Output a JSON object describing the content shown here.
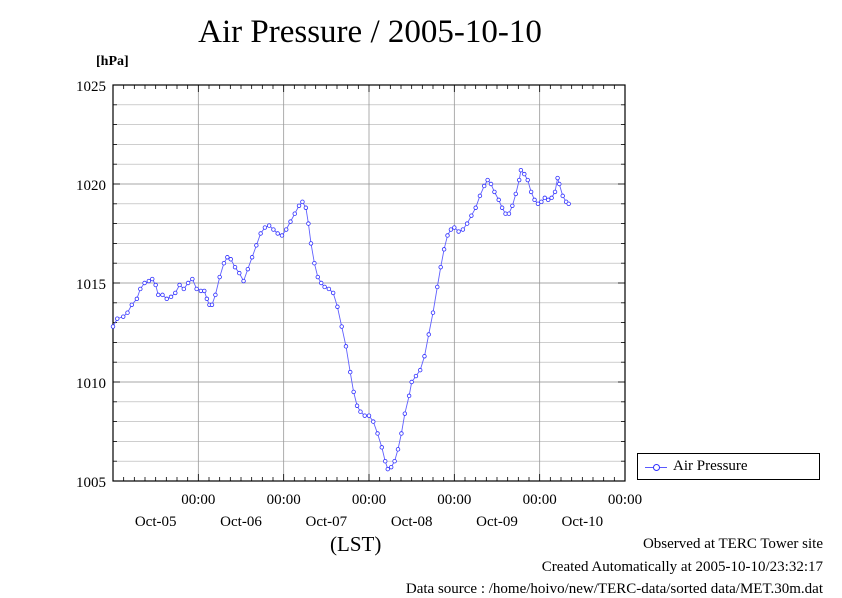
{
  "chart_data": {
    "type": "line",
    "title": "Air Pressure / 2005-10-10",
    "ylabel": "[hPa]",
    "xlabel": "(LST)",
    "ylim": [
      1005,
      1025
    ],
    "yticks": [
      1005,
      1010,
      1015,
      1020,
      1025
    ],
    "xlim": [
      0,
      6
    ],
    "xticks": [
      {
        "x": 1,
        "time": "00:00",
        "date": "Oct-05"
      },
      {
        "x": 2,
        "time": "00:00",
        "date": "Oct-06"
      },
      {
        "x": 3,
        "time": "00:00",
        "date": "Oct-07"
      },
      {
        "x": 4,
        "time": "00:00",
        "date": "Oct-08"
      },
      {
        "x": 5,
        "time": "00:00",
        "date": "Oct-09"
      },
      {
        "x": 6,
        "time": "00:00",
        "date": "Oct-10"
      }
    ],
    "grid": true,
    "legend_position": "right",
    "series": [
      {
        "name": "Air Pressure",
        "color": "#3030ff",
        "points": [
          [
            0.0,
            1012.8
          ],
          [
            0.05,
            1013.2
          ],
          [
            0.12,
            1013.3
          ],
          [
            0.17,
            1013.5
          ],
          [
            0.22,
            1013.9
          ],
          [
            0.28,
            1014.2
          ],
          [
            0.32,
            1014.7
          ],
          [
            0.37,
            1015.0
          ],
          [
            0.42,
            1015.1
          ],
          [
            0.46,
            1015.2
          ],
          [
            0.5,
            1014.9
          ],
          [
            0.53,
            1014.4
          ],
          [
            0.58,
            1014.4
          ],
          [
            0.63,
            1014.2
          ],
          [
            0.68,
            1014.3
          ],
          [
            0.73,
            1014.5
          ],
          [
            0.78,
            1014.9
          ],
          [
            0.83,
            1014.7
          ],
          [
            0.88,
            1015.0
          ],
          [
            0.93,
            1015.2
          ],
          [
            0.98,
            1014.7
          ],
          [
            1.03,
            1014.6
          ],
          [
            1.07,
            1014.6
          ],
          [
            1.1,
            1014.2
          ],
          [
            1.13,
            1013.9
          ],
          [
            1.16,
            1013.9
          ],
          [
            1.2,
            1014.4
          ],
          [
            1.25,
            1015.3
          ],
          [
            1.3,
            1016.0
          ],
          [
            1.34,
            1016.3
          ],
          [
            1.38,
            1016.2
          ],
          [
            1.43,
            1015.8
          ],
          [
            1.48,
            1015.5
          ],
          [
            1.53,
            1015.1
          ],
          [
            1.58,
            1015.7
          ],
          [
            1.63,
            1016.3
          ],
          [
            1.68,
            1016.9
          ],
          [
            1.73,
            1017.5
          ],
          [
            1.78,
            1017.8
          ],
          [
            1.83,
            1017.9
          ],
          [
            1.88,
            1017.7
          ],
          [
            1.93,
            1017.5
          ],
          [
            1.98,
            1017.4
          ],
          [
            2.03,
            1017.7
          ],
          [
            2.08,
            1018.1
          ],
          [
            2.13,
            1018.5
          ],
          [
            2.18,
            1018.9
          ],
          [
            2.22,
            1019.1
          ],
          [
            2.26,
            1018.8
          ],
          [
            2.29,
            1018.0
          ],
          [
            2.32,
            1017.0
          ],
          [
            2.36,
            1016.0
          ],
          [
            2.4,
            1015.3
          ],
          [
            2.44,
            1015.0
          ],
          [
            2.48,
            1014.8
          ],
          [
            2.53,
            1014.7
          ],
          [
            2.58,
            1014.5
          ],
          [
            2.63,
            1013.8
          ],
          [
            2.68,
            1012.8
          ],
          [
            2.73,
            1011.8
          ],
          [
            2.78,
            1010.5
          ],
          [
            2.82,
            1009.5
          ],
          [
            2.86,
            1008.8
          ],
          [
            2.9,
            1008.5
          ],
          [
            2.95,
            1008.3
          ],
          [
            3.0,
            1008.3
          ],
          [
            3.05,
            1008.0
          ],
          [
            3.1,
            1007.4
          ],
          [
            3.15,
            1006.7
          ],
          [
            3.19,
            1006.0
          ],
          [
            3.22,
            1005.6
          ],
          [
            3.26,
            1005.7
          ],
          [
            3.3,
            1006.0
          ],
          [
            3.34,
            1006.6
          ],
          [
            3.38,
            1007.4
          ],
          [
            3.42,
            1008.4
          ],
          [
            3.47,
            1009.3
          ],
          [
            3.5,
            1010.0
          ],
          [
            3.55,
            1010.3
          ],
          [
            3.6,
            1010.6
          ],
          [
            3.65,
            1011.3
          ],
          [
            3.7,
            1012.4
          ],
          [
            3.75,
            1013.5
          ],
          [
            3.8,
            1014.8
          ],
          [
            3.84,
            1015.8
          ],
          [
            3.88,
            1016.7
          ],
          [
            3.92,
            1017.4
          ],
          [
            3.96,
            1017.7
          ],
          [
            4.0,
            1017.8
          ],
          [
            4.05,
            1017.6
          ],
          [
            4.1,
            1017.7
          ],
          [
            4.15,
            1018.0
          ],
          [
            4.2,
            1018.4
          ],
          [
            4.25,
            1018.8
          ],
          [
            4.3,
            1019.4
          ],
          [
            4.35,
            1019.9
          ],
          [
            4.39,
            1020.2
          ],
          [
            4.43,
            1020.0
          ],
          [
            4.47,
            1019.6
          ],
          [
            4.52,
            1019.2
          ],
          [
            4.56,
            1018.8
          ],
          [
            4.6,
            1018.5
          ],
          [
            4.64,
            1018.5
          ],
          [
            4.68,
            1018.9
          ],
          [
            4.72,
            1019.5
          ],
          [
            4.76,
            1020.2
          ],
          [
            4.78,
            1020.7
          ],
          [
            4.82,
            1020.5
          ],
          [
            4.86,
            1020.2
          ],
          [
            4.9,
            1019.6
          ],
          [
            4.94,
            1019.2
          ],
          [
            4.98,
            1019.0
          ],
          [
            5.02,
            1019.1
          ],
          [
            5.06,
            1019.3
          ],
          [
            5.1,
            1019.2
          ],
          [
            5.14,
            1019.3
          ],
          [
            5.18,
            1019.6
          ],
          [
            5.21,
            1020.3
          ],
          [
            5.23,
            1020.0
          ],
          [
            5.27,
            1019.4
          ],
          [
            5.31,
            1019.1
          ],
          [
            5.34,
            1019.0
          ]
        ]
      }
    ]
  },
  "legend": {
    "label": "Air Pressure"
  },
  "footer": {
    "observed": "Observed at TERC Tower site",
    "created": "Created Automatically at 2005-10-10/23:32:17",
    "source": "Data source : /home/hoivo/new/TERC-data/sorted  data/MET.30m.dat"
  }
}
